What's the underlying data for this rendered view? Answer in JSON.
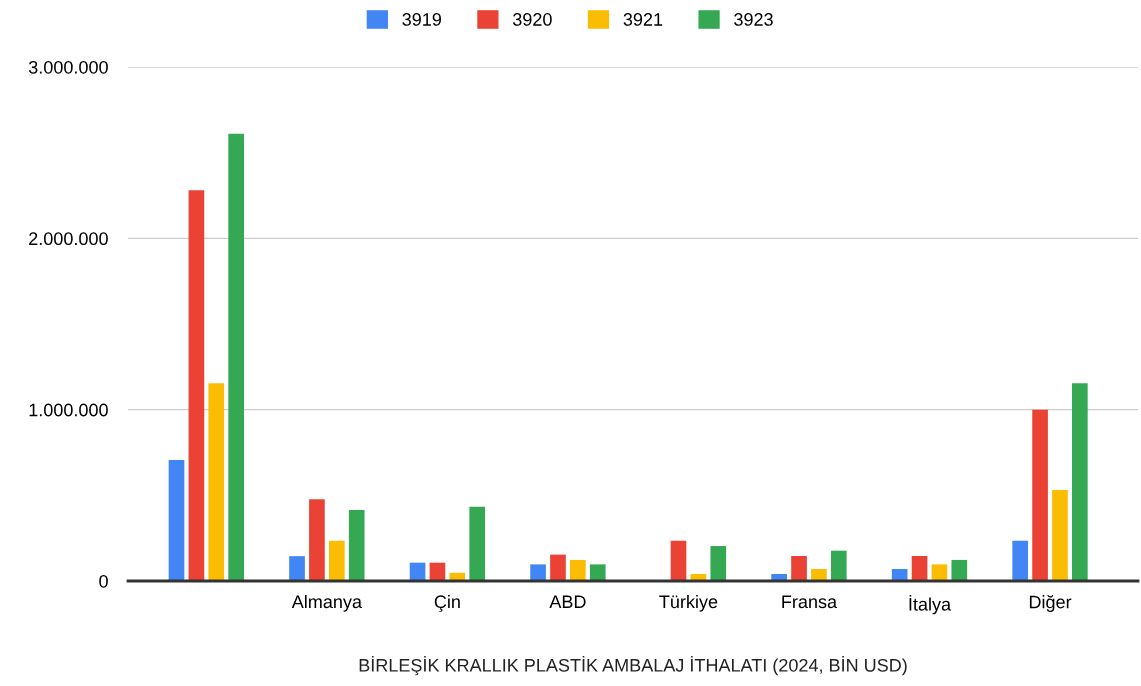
{
  "chart_data": {
    "type": "bar",
    "xlabel": "BİRLEŞİK KRALLIK PLASTİK AMBALAJ İTHALATI (2024, BİN USD)",
    "categories": [
      null,
      "Almanya",
      "Çin",
      "ABD",
      "Türkiye",
      "Fransa",
      "İtalya",
      "Diğer"
    ],
    "series": [
      {
        "name": "3919",
        "color": "#4285f4",
        "values": [
          706000,
          145000,
          107000,
          97000,
          null,
          41000,
          70000,
          235000
        ]
      },
      {
        "name": "3920",
        "color": "#ea4335",
        "values": [
          2280000,
          477000,
          107000,
          154000,
          235000,
          146000,
          146000,
          1000000
        ]
      },
      {
        "name": "3921",
        "color": "#fbbc04",
        "values": [
          1154000,
          235000,
          48000,
          123000,
          41000,
          70000,
          97000,
          531000
        ]
      },
      {
        "name": "3923",
        "color": "#34a853",
        "values": [
          2610000,
          414000,
          434000,
          97000,
          204000,
          177000,
          123000,
          1154000
        ]
      }
    ],
    "ylim": [
      0,
      3000000
    ],
    "yticks": [
      0,
      {
        "value": 1000000,
        "label": "1.000.000"
      },
      {
        "value": 2000000,
        "label": "2.000.000"
      },
      {
        "value": 3000000,
        "label": "3.000.000"
      }
    ],
    "grid": "y",
    "legend": "top"
  }
}
